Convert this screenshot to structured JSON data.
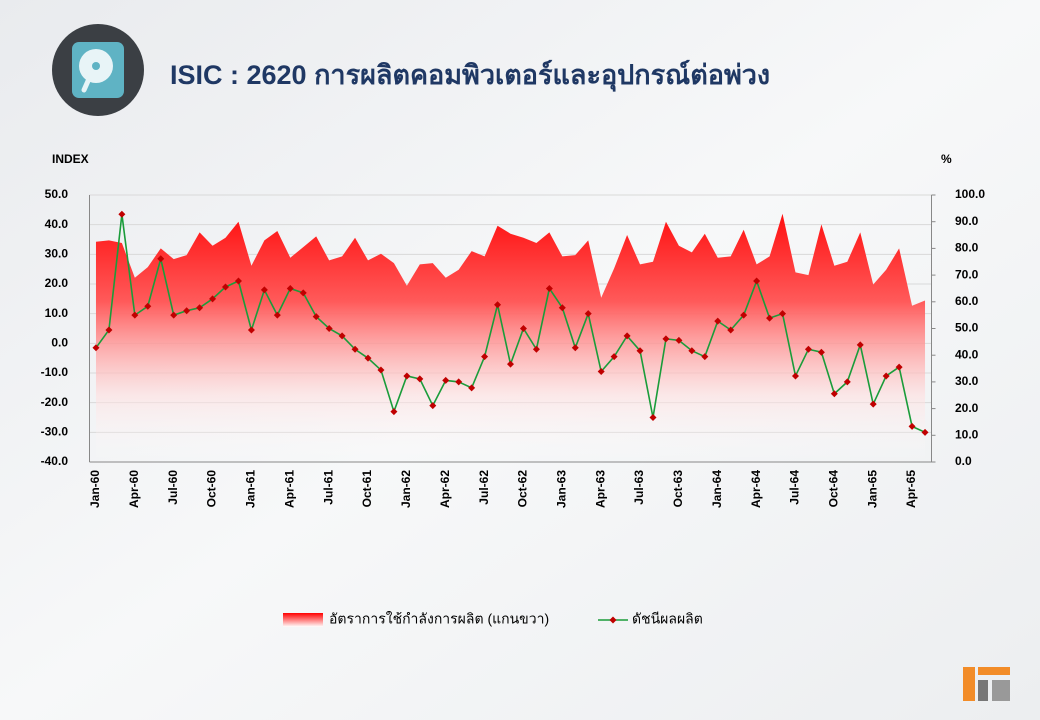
{
  "chart_data": {
    "type": "line",
    "title": "ISIC : 2620 การผลิตคอมพิวเตอร์และอุปกรณ์ต่อพ่วง",
    "y_label": "INDEX",
    "y2_label": "%",
    "categories": [
      "Jan-60",
      null,
      null,
      "Apr-60",
      null,
      null,
      "Jul-60",
      null,
      null,
      "Oct-60",
      null,
      null,
      "Jan-61",
      null,
      null,
      "Apr-61",
      null,
      null,
      "Jul-61",
      null,
      null,
      "Oct-61",
      null,
      null,
      "Jan-62",
      null,
      null,
      "Apr-62",
      null,
      null,
      "Jul-62",
      null,
      null,
      "Oct-62",
      null,
      null,
      "Jan-63",
      null,
      null,
      "Apr-63",
      null,
      null,
      "Jul-63",
      null,
      null,
      "Oct-63",
      null,
      null,
      "Jan-64",
      null,
      null,
      "Apr-64",
      null,
      null,
      "Jul-64",
      null,
      null,
      "Oct-64",
      null,
      null,
      "Jan-65",
      null,
      null,
      "Apr-65",
      null
    ],
    "series": [
      {
        "name": "อัตราการใช้กำลังการผลิต (แกนขวา)",
        "type": "area",
        "axis": "y2",
        "color": "#ff0000",
        "values": [
          82.5,
          83,
          82,
          69,
          73,
          80,
          76,
          77.5,
          86,
          81,
          84,
          90,
          73.5,
          83,
          86.5,
          76.5,
          80.5,
          84.5,
          75.5,
          77,
          84,
          75.5,
          78,
          74.5,
          66,
          74,
          74.5,
          69,
          72,
          79,
          77,
          88.5,
          85.5,
          84,
          82,
          86,
          77,
          77.5,
          83,
          61.5,
          72.5,
          85,
          74,
          75,
          90,
          81,
          78.5,
          85.5,
          76.5,
          77,
          87,
          74,
          77,
          93,
          71,
          70,
          89,
          73.5,
          75,
          86,
          66.5,
          72,
          80,
          58.5,
          60.5
        ]
      },
      {
        "name": "ดัชนีผลผลิต",
        "type": "line",
        "axis": "y",
        "color": "#1a9c3a",
        "marker_color": "#c00000",
        "values": [
          -1.5,
          4.5,
          43.5,
          9.5,
          12.5,
          28.5,
          9.5,
          11,
          12,
          15,
          19,
          21,
          4.5,
          18,
          9.5,
          18.5,
          17,
          9,
          5,
          2.5,
          -2,
          -5,
          -9,
          -23,
          -11,
          -12,
          -21,
          -12.5,
          -13,
          -15,
          -4.5,
          13,
          -7,
          5,
          -2,
          18.5,
          12,
          -1.5,
          10,
          -9.5,
          -4.5,
          2.5,
          -2.5,
          -25,
          1.5,
          1,
          -2.5,
          -4.5,
          7.5,
          4.5,
          9.5,
          21,
          8.5,
          10,
          -11,
          -2,
          -3,
          -17,
          -13,
          -0.5,
          -20.5,
          -11,
          -8,
          -28,
          -30
        ]
      }
    ],
    "ylim": [
      -40,
      50
    ],
    "yticks": [
      {
        "value": -40,
        "label": "-40.0"
      },
      {
        "value": -30,
        "label": "-30.0"
      },
      {
        "value": -20,
        "label": "-20.0"
      },
      {
        "value": -10,
        "label": "-10.0"
      },
      {
        "value": 0,
        "label": "0.0"
      },
      {
        "value": 10,
        "label": "10.0"
      },
      {
        "value": 20,
        "label": "20.0"
      },
      {
        "value": 30,
        "label": "30.0"
      },
      {
        "value": 40,
        "label": "40.0"
      },
      {
        "value": 50,
        "label": "50.0"
      }
    ],
    "y2lim": [
      0,
      100
    ],
    "y2ticks": [
      {
        "value": 0,
        "label": "0.0"
      },
      {
        "value": 10,
        "label": "10.0"
      },
      {
        "value": 20,
        "label": "20.0"
      },
      {
        "value": 30,
        "label": "30.0"
      },
      {
        "value": 40,
        "label": "40.0"
      },
      {
        "value": 50,
        "label": "50.0"
      },
      {
        "value": 60,
        "label": "60.0"
      },
      {
        "value": 70,
        "label": "70.0"
      },
      {
        "value": 80,
        "label": "80.0"
      },
      {
        "value": 90,
        "label": "90.0"
      },
      {
        "value": 100,
        "label": "100.0"
      }
    ],
    "grid": true,
    "legend": "bottom"
  }
}
